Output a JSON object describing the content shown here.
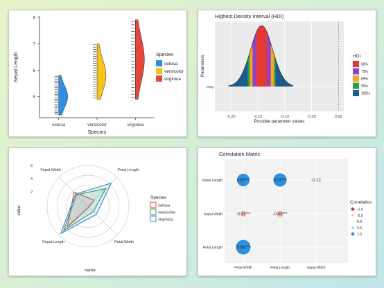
{
  "chart_data": [
    {
      "type": "violin",
      "panel": "half-violin",
      "xlabel": "Species",
      "ylabel": "Sepal Length",
      "categories": [
        "setosa",
        "versicolor",
        "virginica"
      ],
      "ylim": [
        4.3,
        7.9
      ],
      "yticks": [
        "5",
        "6",
        "7",
        "8"
      ],
      "legend": {
        "title": "Species",
        "entries": [
          "setosa",
          "versicolor",
          "virginica"
        ],
        "position": "right"
      },
      "colors": {
        "setosa": "#2e8fe6",
        "versicolor": "#f6c31c",
        "virginica": "#e5473d"
      },
      "series": [
        {
          "name": "setosa",
          "min": 4.3,
          "max": 5.8,
          "mode": 5.0
        },
        {
          "name": "versicolor",
          "min": 4.9,
          "max": 7.0,
          "mode": 5.8
        },
        {
          "name": "virginica",
          "min": 4.9,
          "max": 7.9,
          "mode": 6.4
        }
      ]
    },
    {
      "type": "area",
      "panel": "hdi",
      "title": "Highest Density Interval (HDI)",
      "xlabel": "Possible parameter values",
      "ylabel": "Parameters",
      "category": "mpg",
      "xticks": [
        "-0.20",
        "-0.15",
        "-0.10",
        "-0.05",
        "0.00"
      ],
      "xlim": [
        -0.23,
        0.01
      ],
      "mode": -0.143,
      "legend": {
        "title": "HDI",
        "entries": [
          "50%",
          "75%",
          "89%",
          "95%",
          "100%"
        ],
        "position": "right"
      },
      "colors": [
        "#e53935",
        "#8e44c9",
        "#f5a623",
        "#2e9e44",
        "#1b5b8f"
      ],
      "hdi_bounds": [
        [
          -0.153,
          -0.133
        ],
        [
          -0.16,
          -0.126
        ],
        [
          -0.165,
          -0.12
        ],
        [
          -0.169,
          -0.117
        ],
        [
          -0.205,
          -0.085
        ]
      ]
    },
    {
      "type": "radar",
      "panel": "radar",
      "xlabel": "name",
      "ylabel": "value",
      "axes": [
        "Sepal.Width",
        "Petal.Length",
        "Petal.Width",
        "Sepal.Length"
      ],
      "yticks": [
        "2",
        "4",
        "6"
      ],
      "rmax": 7,
      "legend": {
        "title": "Species",
        "entries": [
          "setosa",
          "versicolor",
          "virginica"
        ],
        "position": "right"
      },
      "colors": {
        "setosa": "#e34a42",
        "versicolor": "#2da44e",
        "virginica": "#3b82d6"
      },
      "series": [
        {
          "name": "setosa",
          "values": [
            3.4,
            1.5,
            0.2,
            5.0
          ]
        },
        {
          "name": "versicolor",
          "values": [
            2.8,
            4.3,
            1.3,
            5.9
          ]
        },
        {
          "name": "virginica",
          "values": [
            3.0,
            5.6,
            2.0,
            6.6
          ]
        }
      ]
    },
    {
      "type": "heatmap",
      "panel": "correlation",
      "title": "Correlation Matrix",
      "rows": [
        "Sepal.Length",
        "Sepal.Width",
        "Petal.Length"
      ],
      "cols": [
        "Petal.Width",
        "Petal.Length",
        "Sepal.Width"
      ],
      "legend": {
        "title": "Correlation",
        "entries": [
          "-1.0",
          "-0.5",
          "0.0",
          "0.5",
          "1.0"
        ],
        "position": "right"
      },
      "cells": [
        {
          "row": 0,
          "col": 0,
          "r": 0.82,
          "label": "0.82***"
        },
        {
          "row": 0,
          "col": 1,
          "r": 0.87,
          "label": "0.87***"
        },
        {
          "row": 0,
          "col": 2,
          "r": -0.12,
          "label": "-0.12"
        },
        {
          "row": 1,
          "col": 0,
          "r": -0.37,
          "label": "-0.37***"
        },
        {
          "row": 1,
          "col": 1,
          "r": -0.43,
          "label": "-0.43***"
        },
        {
          "row": 2,
          "col": 0,
          "r": 0.96,
          "label": "0.96***"
        }
      ]
    }
  ]
}
